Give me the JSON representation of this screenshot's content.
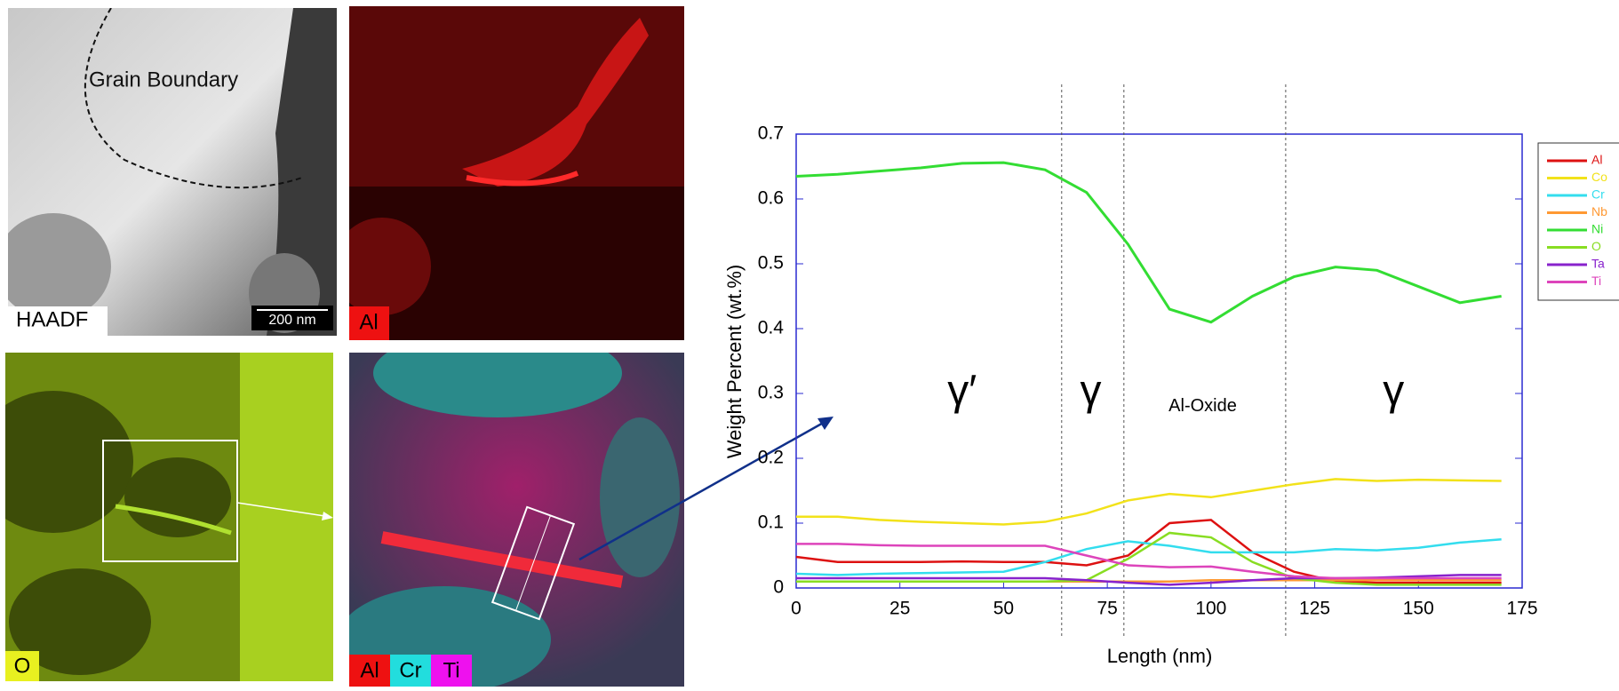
{
  "panels": {
    "haadf": "HAADF",
    "scale": "200 nm",
    "boundary": "Grain Boundary",
    "al": "Al",
    "o": "O",
    "mix": [
      "Al",
      "Cr",
      "Ti"
    ]
  },
  "chart_data": {
    "type": "line",
    "x_label": "Length (nm)",
    "y_label": "Weight Percent (wt.%)",
    "x": [
      0,
      10,
      20,
      30,
      40,
      50,
      60,
      70,
      80,
      90,
      100,
      110,
      120,
      130,
      140,
      150,
      160,
      170
    ],
    "series": [
      {
        "name": "Al",
        "color": "#dd1111",
        "values": [
          0.048,
          0.04,
          0.04,
          0.04,
          0.041,
          0.04,
          0.04,
          0.035,
          0.05,
          0.1,
          0.105,
          0.055,
          0.025,
          0.01,
          0.008,
          0.008,
          0.008,
          0.008
        ]
      },
      {
        "name": "Co",
        "color": "#f2e21a",
        "values": [
          0.11,
          0.11,
          0.105,
          0.102,
          0.1,
          0.098,
          0.102,
          0.115,
          0.135,
          0.145,
          0.14,
          0.15,
          0.16,
          0.168,
          0.165,
          0.167,
          0.166,
          0.165
        ]
      },
      {
        "name": "Cr",
        "color": "#33ddee",
        "values": [
          0.022,
          0.02,
          0.022,
          0.023,
          0.024,
          0.025,
          0.04,
          0.06,
          0.072,
          0.065,
          0.055,
          0.055,
          0.055,
          0.06,
          0.058,
          0.062,
          0.07,
          0.075
        ]
      },
      {
        "name": "Nb",
        "color": "#ff9933",
        "values": [
          0.01,
          0.01,
          0.01,
          0.01,
          0.01,
          0.01,
          0.01,
          0.01,
          0.01,
          0.01,
          0.012,
          0.012,
          0.012,
          0.012,
          0.012,
          0.012,
          0.012,
          0.012
        ]
      },
      {
        "name": "Ni",
        "color": "#33dd33",
        "values": [
          0.635,
          0.638,
          0.643,
          0.648,
          0.655,
          0.656,
          0.645,
          0.61,
          0.53,
          0.43,
          0.41,
          0.45,
          0.48,
          0.495,
          0.49,
          0.465,
          0.44,
          0.45
        ]
      },
      {
        "name": "O",
        "color": "#88dd22",
        "values": [
          0.01,
          0.01,
          0.01,
          0.01,
          0.01,
          0.01,
          0.01,
          0.012,
          0.045,
          0.085,
          0.078,
          0.04,
          0.015,
          0.008,
          0.005,
          0.005,
          0.005,
          0.005
        ]
      },
      {
        "name": "Ta",
        "color": "#8822cc",
        "values": [
          0.015,
          0.015,
          0.015,
          0.015,
          0.015,
          0.015,
          0.015,
          0.012,
          0.008,
          0.005,
          0.008,
          0.012,
          0.015,
          0.015,
          0.016,
          0.018,
          0.02,
          0.02
        ]
      },
      {
        "name": "Ti",
        "color": "#dd44bb",
        "values": [
          0.068,
          0.068,
          0.066,
          0.065,
          0.065,
          0.065,
          0.065,
          0.05,
          0.035,
          0.032,
          0.033,
          0.025,
          0.018,
          0.015,
          0.015,
          0.015,
          0.015,
          0.015
        ]
      }
    ],
    "xlim": [
      0,
      175
    ],
    "xticks": [
      0,
      25,
      50,
      75,
      100,
      125,
      150,
      175
    ],
    "ylim": [
      0,
      0.7
    ],
    "yticks": [
      0,
      0.1,
      0.2,
      0.3,
      0.4,
      0.5,
      0.6,
      0.7
    ],
    "region_lines": [
      64,
      79,
      118
    ],
    "annotations": [
      {
        "text": "γ′",
        "x": 40,
        "y": 0.3
      },
      {
        "text": "γ",
        "x": 71,
        "y": 0.3
      },
      {
        "text": "Al-Oxide",
        "x": 98,
        "y": 0.28
      },
      {
        "text": "γ",
        "x": 144,
        "y": 0.3
      }
    ],
    "legend": "upper right"
  }
}
